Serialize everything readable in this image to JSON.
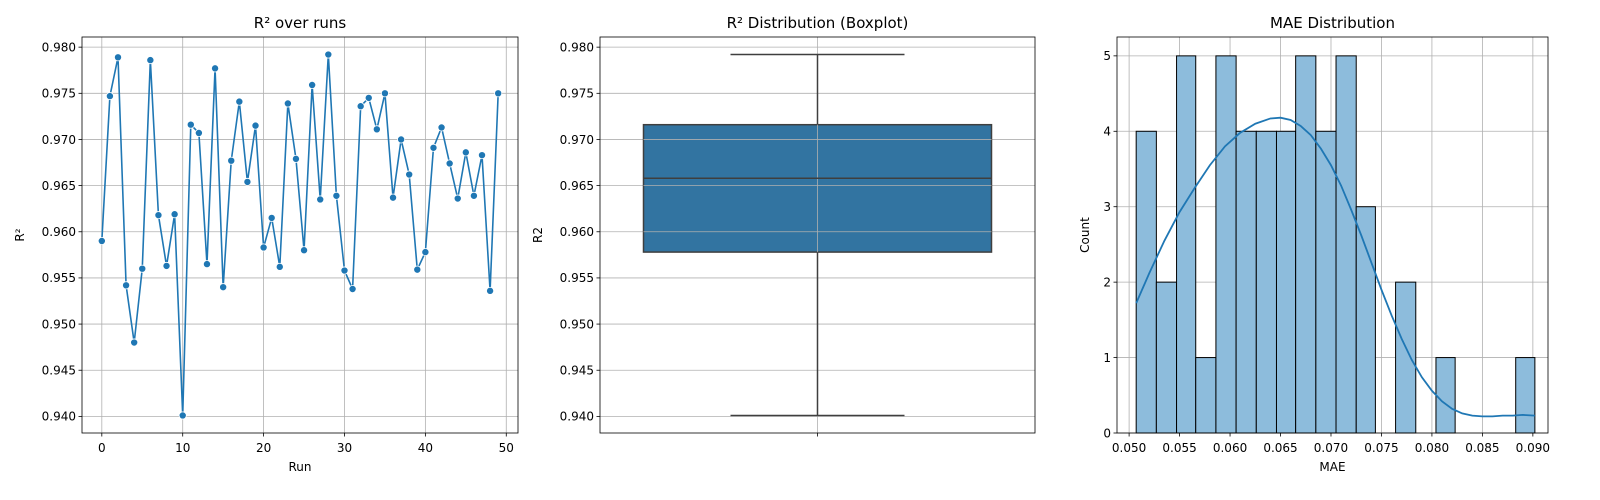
{
  "chart_data": [
    {
      "type": "line",
      "title": "R² over runs",
      "xlabel": "Run",
      "ylabel": "R²",
      "xlim": [
        -2.45,
        51.45
      ],
      "ylim": [
        0.9382,
        0.9811
      ],
      "xticks": [
        0,
        10,
        20,
        30,
        40,
        50
      ],
      "yticks": [
        0.94,
        0.945,
        0.95,
        0.955,
        0.96,
        0.965,
        0.97,
        0.975,
        0.98
      ],
      "grid": true,
      "color": "#1f77b4",
      "series": [
        {
          "x": [
            0,
            1,
            2,
            3,
            4,
            5,
            6,
            7,
            8,
            9,
            10,
            11,
            12,
            13,
            14,
            15,
            16,
            17,
            18,
            19,
            20,
            21,
            22,
            23,
            24,
            25,
            26,
            27,
            28,
            29,
            30,
            31,
            32,
            33,
            34,
            35,
            36,
            37,
            38,
            39,
            40,
            41,
            42,
            43,
            44,
            45,
            46,
            47,
            48,
            49
          ],
          "values": [
            0.959,
            0.9747,
            0.9789,
            0.9542,
            0.948,
            0.956,
            0.9786,
            0.9618,
            0.9563,
            0.9619,
            0.9401,
            0.9716,
            0.9707,
            0.9565,
            0.9777,
            0.954,
            0.9677,
            0.9741,
            0.9654,
            0.9715,
            0.9583,
            0.9615,
            0.9562,
            0.9739,
            0.9679,
            0.958,
            0.9759,
            0.9635,
            0.9792,
            0.9639,
            0.9558,
            0.9538,
            0.9736,
            0.9745,
            0.9711,
            0.975,
            0.9637,
            0.97,
            0.9662,
            0.9559,
            0.9578,
            0.9691,
            0.9713,
            0.9674,
            0.9636,
            0.9686,
            0.9639,
            0.9683,
            0.9536,
            0.975
          ]
        }
      ]
    },
    {
      "type": "boxplot",
      "title": "R² Distribution (Boxplot)",
      "xlabel": "",
      "ylabel": "R2",
      "ylim": [
        0.9382,
        0.9811
      ],
      "yticks": [
        0.94,
        0.945,
        0.95,
        0.955,
        0.96,
        0.965,
        0.97,
        0.975,
        0.98
      ],
      "grid": true,
      "color": "#3274a1",
      "stats": {
        "min": 0.9401,
        "q1": 0.9578,
        "median": 0.9658,
        "q3": 0.9716,
        "max": 0.9792
      }
    },
    {
      "type": "histogram",
      "title": "MAE Distribution",
      "xlabel": "MAE",
      "ylabel": "Count",
      "xlim": [
        0.0488,
        0.0915
      ],
      "ylim": [
        0,
        5.25
      ],
      "xticks": [
        0.05,
        0.055,
        0.06,
        0.065,
        0.07,
        0.075,
        0.08,
        0.085,
        0.09
      ],
      "yticks": [
        0,
        1,
        2,
        3,
        4,
        5
      ],
      "grid": true,
      "bar_color": "#8dbcdc",
      "kde_color": "#1f77b4",
      "bins": [
        {
          "start": 0.0507,
          "end": 0.0527,
          "count": 4
        },
        {
          "start": 0.0527,
          "end": 0.0547,
          "count": 2
        },
        {
          "start": 0.0547,
          "end": 0.0566,
          "count": 5
        },
        {
          "start": 0.0566,
          "end": 0.0586,
          "count": 1
        },
        {
          "start": 0.0586,
          "end": 0.0606,
          "count": 5
        },
        {
          "start": 0.0606,
          "end": 0.0626,
          "count": 4
        },
        {
          "start": 0.0626,
          "end": 0.0646,
          "count": 4
        },
        {
          "start": 0.0646,
          "end": 0.0665,
          "count": 4
        },
        {
          "start": 0.0665,
          "end": 0.0685,
          "count": 5
        },
        {
          "start": 0.0685,
          "end": 0.0705,
          "count": 4
        },
        {
          "start": 0.0705,
          "end": 0.0725,
          "count": 5
        },
        {
          "start": 0.0725,
          "end": 0.0744,
          "count": 3
        },
        {
          "start": 0.0744,
          "end": 0.0764,
          "count": 0
        },
        {
          "start": 0.0764,
          "end": 0.0784,
          "count": 2
        },
        {
          "start": 0.0784,
          "end": 0.0804,
          "count": 0
        },
        {
          "start": 0.0804,
          "end": 0.0823,
          "count": 1
        },
        {
          "start": 0.0823,
          "end": 0.0843,
          "count": 0
        },
        {
          "start": 0.0843,
          "end": 0.0863,
          "count": 0
        },
        {
          "start": 0.0863,
          "end": 0.0883,
          "count": 0
        },
        {
          "start": 0.0883,
          "end": 0.0902,
          "count": 1
        }
      ],
      "kde": {
        "x": [
          0.0507,
          0.052,
          0.0535,
          0.055,
          0.0565,
          0.058,
          0.0595,
          0.061,
          0.0625,
          0.064,
          0.065,
          0.066,
          0.067,
          0.068,
          0.069,
          0.07,
          0.071,
          0.072,
          0.073,
          0.074,
          0.075,
          0.076,
          0.077,
          0.078,
          0.079,
          0.08,
          0.081,
          0.082,
          0.083,
          0.084,
          0.085,
          0.086,
          0.087,
          0.088,
          0.089,
          0.0902
        ],
        "values": [
          1.72,
          2.12,
          2.55,
          2.93,
          3.25,
          3.55,
          3.8,
          3.98,
          4.1,
          4.17,
          4.18,
          4.15,
          4.07,
          3.95,
          3.77,
          3.55,
          3.28,
          2.96,
          2.62,
          2.26,
          1.9,
          1.56,
          1.25,
          0.97,
          0.74,
          0.56,
          0.42,
          0.32,
          0.26,
          0.23,
          0.22,
          0.22,
          0.23,
          0.23,
          0.24,
          0.23
        ]
      }
    }
  ]
}
